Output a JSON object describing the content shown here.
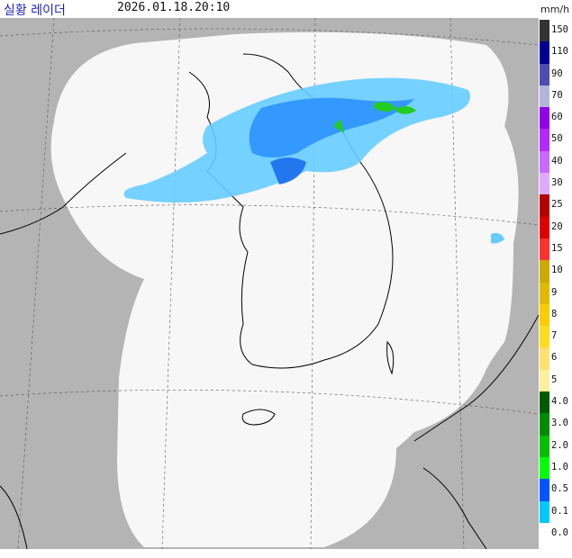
{
  "header": {
    "title": "실황 레이더",
    "timestamp": "2026.01.18.20:10",
    "unit": "mm/h"
  },
  "legend": [
    {
      "label": "150",
      "color": "#333333"
    },
    {
      "label": "110",
      "color": "#000090"
    },
    {
      "label": "90",
      "color": "#4c4cb3"
    },
    {
      "label": "70",
      "color": "#b3b4de"
    },
    {
      "label": "60",
      "color": "#9300e4"
    },
    {
      "label": "50",
      "color": "#b329ff"
    },
    {
      "label": "40",
      "color": "#c969ff"
    },
    {
      "label": "30",
      "color": "#e0a9ff"
    },
    {
      "label": "25",
      "color": "#b40000"
    },
    {
      "label": "20",
      "color": "#e00000"
    },
    {
      "label": "15",
      "color": "#ff3232"
    },
    {
      "label": "10",
      "color": "#ccaa00"
    },
    {
      "label": "9",
      "color": "#e0b900"
    },
    {
      "label": "8",
      "color": "#f9cd00"
    },
    {
      "label": "7",
      "color": "#ffdc1f"
    },
    {
      "label": "6",
      "color": "#ffe16e"
    },
    {
      "label": "5",
      "color": "#fff0a0"
    },
    {
      "label": "4.0",
      "color": "#005a00"
    },
    {
      "label": "3.0",
      "color": "#008c00"
    },
    {
      "label": "2.0",
      "color": "#00be00"
    },
    {
      "label": "1.0",
      "color": "#00ff00"
    },
    {
      "label": "0.5",
      "color": "#0055ff"
    },
    {
      "label": "0.1",
      "color": "#00c8ff"
    },
    {
      "label": "0.0",
      "color": "#ffffff"
    }
  ]
}
